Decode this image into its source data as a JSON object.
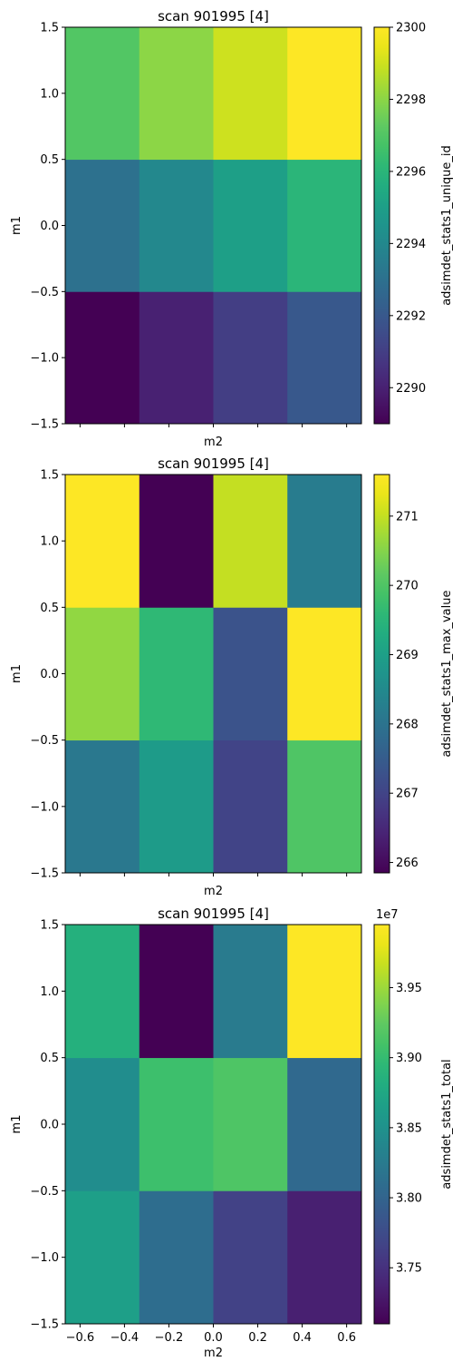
{
  "chart_data": [
    {
      "type": "heatmap",
      "title": "scan 901995 [4]",
      "xlabel": "m2",
      "ylabel": "m1",
      "colorbar_label": "adsimdet_stats1_unique_id",
      "colormap": "viridis",
      "xlim": [
        -0.6667,
        0.6667
      ],
      "ylim": [
        -1.5,
        1.5
      ],
      "x_edges": [
        -0.6667,
        -0.3333,
        0.0,
        0.3333,
        0.6667
      ],
      "y_edges": [
        -1.5,
        -0.5,
        0.5,
        1.5
      ],
      "x_ticks": [
        -0.6,
        -0.4,
        -0.2,
        0.0,
        0.2,
        0.4,
        0.6
      ],
      "x_tick_labels": [
        "",
        "",
        "",
        "",
        "",
        "",
        ""
      ],
      "y_ticks": [
        -1.5,
        -1.0,
        -0.5,
        0.0,
        0.5,
        1.0,
        1.5
      ],
      "y_tick_labels": [
        "−1.5",
        "−1.0",
        "−0.5",
        "0.0",
        "0.5",
        "1.0",
        "1.5"
      ],
      "show_xlabel": true,
      "vmin": 2289,
      "vmax": 2300,
      "colorbar_ticks": [
        2290,
        2292,
        2294,
        2296,
        2298,
        2300
      ],
      "colorbar_tick_labels": [
        "2290",
        "2292",
        "2294",
        "2296",
        "2298",
        "2300"
      ],
      "colorbar_offset_label": "",
      "values": [
        [
          2289,
          2290,
          2291,
          2292
        ],
        [
          2293,
          2294,
          2295,
          2296
        ],
        [
          2297,
          2298,
          2299,
          2300
        ]
      ]
    },
    {
      "type": "heatmap",
      "title": "scan 901995 [4]",
      "xlabel": "m2",
      "ylabel": "m1",
      "colorbar_label": "adsimdet_stats1_max_value",
      "colormap": "viridis",
      "xlim": [
        -0.6667,
        0.6667
      ],
      "ylim": [
        -1.5,
        1.5
      ],
      "x_edges": [
        -0.6667,
        -0.3333,
        0.0,
        0.3333,
        0.6667
      ],
      "y_edges": [
        -1.5,
        -0.5,
        0.5,
        1.5
      ],
      "x_ticks": [
        -0.6,
        -0.4,
        -0.2,
        0.0,
        0.2,
        0.4,
        0.6
      ],
      "x_tick_labels": [
        "",
        "",
        "",
        "",
        "",
        "",
        ""
      ],
      "y_ticks": [
        -1.5,
        -1.0,
        -0.5,
        0.0,
        0.5,
        1.0,
        1.5
      ],
      "y_tick_labels": [
        "−1.5",
        "−1.0",
        "−0.5",
        "0.0",
        "0.5",
        "1.0",
        "1.5"
      ],
      "show_xlabel": true,
      "vmin": 265.85,
      "vmax": 271.6,
      "colorbar_ticks": [
        266,
        267,
        268,
        269,
        270,
        271
      ],
      "colorbar_tick_labels": [
        "266",
        "267",
        "268",
        "269",
        "270",
        "271"
      ],
      "colorbar_offset_label": "",
      "values": [
        [
          268.1,
          268.9,
          267.0,
          270.0
        ],
        [
          270.6,
          269.6,
          267.3,
          271.6
        ],
        [
          271.6,
          265.85,
          271.0,
          268.2
        ]
      ]
    },
    {
      "type": "heatmap",
      "title": "scan 901995 [4]",
      "xlabel": "m2",
      "ylabel": "m1",
      "colorbar_label": "adsimdet_stats1_total",
      "colormap": "viridis",
      "xlim": [
        -0.6667,
        0.6667
      ],
      "ylim": [
        -1.5,
        1.5
      ],
      "x_edges": [
        -0.6667,
        -0.3333,
        0.0,
        0.3333,
        0.6667
      ],
      "y_edges": [
        -1.5,
        -0.5,
        0.5,
        1.5
      ],
      "x_ticks": [
        -0.6,
        -0.4,
        -0.2,
        0.0,
        0.2,
        0.4,
        0.6
      ],
      "x_tick_labels": [
        "−0.6",
        "−0.4",
        "−0.2",
        "0.0",
        "0.2",
        "0.4",
        "0.6"
      ],
      "y_ticks": [
        -1.5,
        -1.0,
        -0.5,
        0.0,
        0.5,
        1.0,
        1.5
      ],
      "y_tick_labels": [
        "−1.5",
        "−1.0",
        "−0.5",
        "0.0",
        "0.5",
        "1.0",
        "1.5"
      ],
      "show_xlabel": true,
      "vmin": 3.71,
      "vmax": 3.995,
      "colorbar_ticks": [
        3.75,
        3.8,
        3.85,
        3.9,
        3.95
      ],
      "colorbar_tick_labels": [
        "3.75",
        "3.80",
        "3.85",
        "3.90",
        "3.95"
      ],
      "colorbar_offset_label": "1e7",
      "values": [
        [
          3.865,
          3.81,
          3.765,
          3.735
        ],
        [
          3.845,
          3.905,
          3.915,
          3.805
        ],
        [
          3.885,
          3.71,
          3.825,
          3.995
        ]
      ]
    }
  ]
}
